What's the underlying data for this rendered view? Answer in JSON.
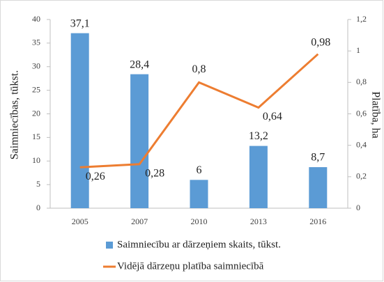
{
  "chart_data": {
    "type": "combo",
    "categories": [
      "2005",
      "2007",
      "2010",
      "2013",
      "2016"
    ],
    "series": [
      {
        "name": "Saimniecību ar dārzeņiem skaits, tūkst.",
        "type": "bar",
        "color": "#5b9bd5",
        "values": [
          37.1,
          28.4,
          6,
          13.2,
          8.7
        ],
        "value_labels": [
          "37,1",
          "28,4",
          "6",
          "13,2",
          "8,7"
        ]
      },
      {
        "name": "Vidējā dārzeņu platība saimniecībā",
        "type": "line",
        "axis": "y2",
        "color": "#ed7d31",
        "values": [
          0.26,
          0.28,
          0.8,
          0.64,
          0.98
        ],
        "value_labels": [
          "0,26",
          "0,28",
          "0,8",
          "0,64",
          "0,98"
        ]
      }
    ],
    "ylabel": "Saimniecības, tūkst.",
    "y2label": "Platība, ha",
    "ylim": [
      0,
      40
    ],
    "yticks": [
      0,
      5,
      10,
      15,
      20,
      25,
      30,
      35,
      40
    ],
    "y2lim": [
      0,
      1.2
    ],
    "y2ticks": [
      0,
      {
        "value": 0.2,
        "label": "0,2"
      },
      {
        "value": 0.4,
        "label": "0,4"
      },
      {
        "value": 0.6,
        "label": "0,6"
      },
      {
        "value": 0.8,
        "label": "0,8"
      },
      {
        "value": 1,
        "label": "1"
      },
      {
        "value": 1.2,
        "label": "1,2"
      }
    ],
    "legend": "bottom"
  }
}
